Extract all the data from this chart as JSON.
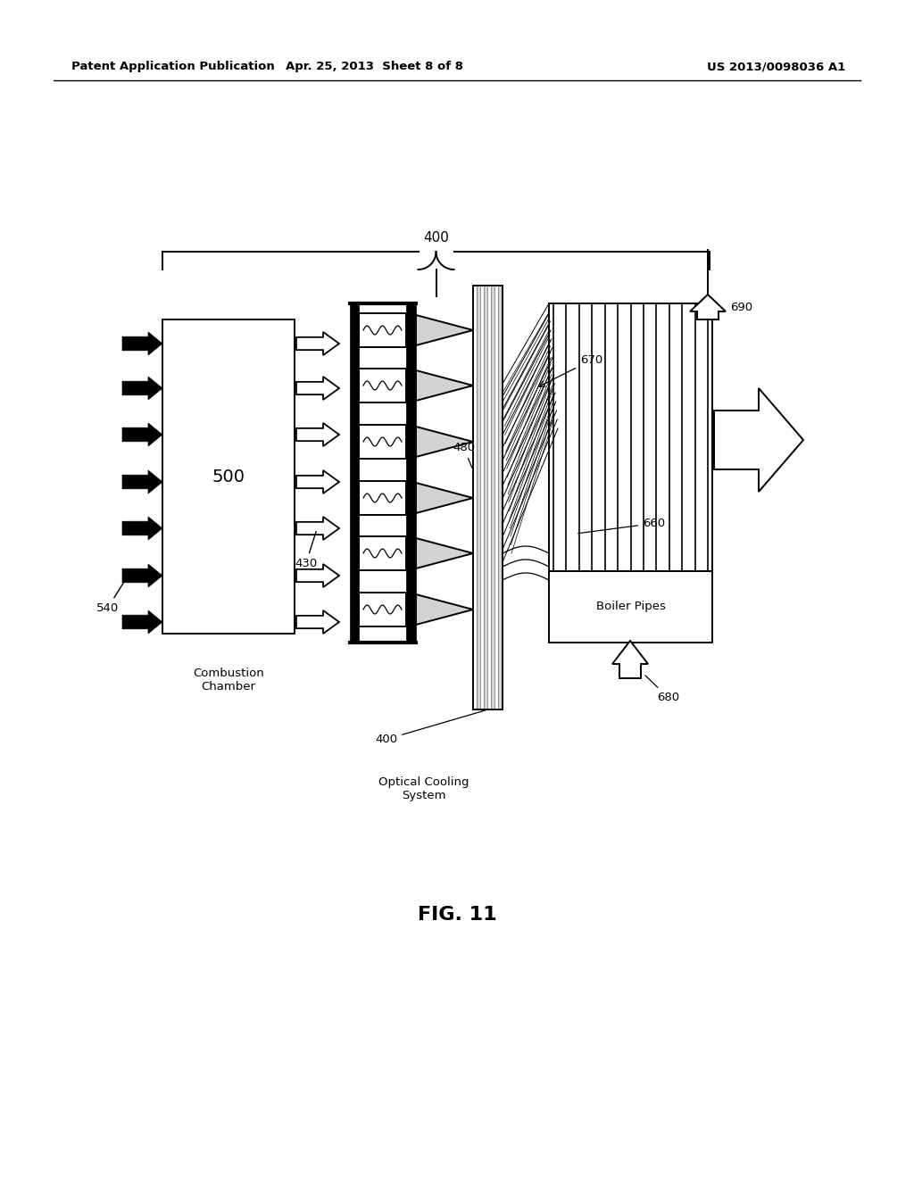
{
  "background_color": "#ffffff",
  "header_left": "Patent Application Publication",
  "header_center": "Apr. 25, 2013  Sheet 8 of 8",
  "header_right": "US 2013/0098036 A1",
  "figure_label": "FIG. 11",
  "page_width": 10.24,
  "page_height": 13.2
}
